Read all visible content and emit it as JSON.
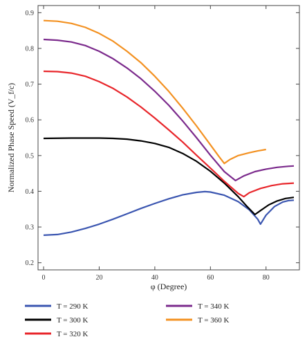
{
  "chart_data": {
    "type": "line",
    "xlabel": "φ (Degree)",
    "ylabel": "Normalized Phase Speed (V_f/c)",
    "xlim": [
      -2,
      92
    ],
    "ylim": [
      0.18,
      0.92
    ],
    "x_ticks": [
      0,
      20,
      40,
      60,
      80
    ],
    "y_ticks": [
      0.2,
      0.3,
      0.4,
      0.5,
      0.6,
      0.7,
      0.8,
      0.9
    ],
    "grid": false,
    "legend_position": "bottom",
    "series": [
      {
        "name": "T = 290 K",
        "color": "#3a55b0",
        "points": [
          [
            0,
            0.277
          ],
          [
            5,
            0.279
          ],
          [
            10,
            0.286
          ],
          [
            15,
            0.296
          ],
          [
            20,
            0.308
          ],
          [
            25,
            0.322
          ],
          [
            30,
            0.337
          ],
          [
            35,
            0.352
          ],
          [
            40,
            0.366
          ],
          [
            45,
            0.379
          ],
          [
            50,
            0.39
          ],
          [
            55,
            0.397
          ],
          [
            58,
            0.399
          ],
          [
            60,
            0.398
          ],
          [
            65,
            0.389
          ],
          [
            70,
            0.371
          ],
          [
            74,
            0.348
          ],
          [
            77,
            0.322
          ],
          [
            78,
            0.308
          ],
          [
            80,
            0.333
          ],
          [
            83,
            0.357
          ],
          [
            86,
            0.37
          ],
          [
            88,
            0.374
          ],
          [
            90,
            0.375
          ]
        ]
      },
      {
        "name": "T = 300 K",
        "color": "#000000",
        "points": [
          [
            0,
            0.548
          ],
          [
            10,
            0.549
          ],
          [
            20,
            0.549
          ],
          [
            25,
            0.548
          ],
          [
            30,
            0.546
          ],
          [
            35,
            0.541
          ],
          [
            40,
            0.534
          ],
          [
            45,
            0.523
          ],
          [
            50,
            0.506
          ],
          [
            55,
            0.484
          ],
          [
            60,
            0.456
          ],
          [
            65,
            0.423
          ],
          [
            70,
            0.385
          ],
          [
            73,
            0.359
          ],
          [
            76,
            0.335
          ],
          [
            78,
            0.346
          ],
          [
            81,
            0.362
          ],
          [
            84,
            0.373
          ],
          [
            87,
            0.38
          ],
          [
            90,
            0.383
          ]
        ]
      },
      {
        "name": "T = 320 K",
        "color": "#e8262b",
        "points": [
          [
            0,
            0.736
          ],
          [
            5,
            0.735
          ],
          [
            10,
            0.731
          ],
          [
            15,
            0.722
          ],
          [
            20,
            0.707
          ],
          [
            25,
            0.688
          ],
          [
            30,
            0.664
          ],
          [
            35,
            0.636
          ],
          [
            40,
            0.605
          ],
          [
            45,
            0.572
          ],
          [
            50,
            0.538
          ],
          [
            55,
            0.501
          ],
          [
            60,
            0.465
          ],
          [
            65,
            0.428
          ],
          [
            70,
            0.394
          ],
          [
            72,
            0.385
          ],
          [
            74,
            0.396
          ],
          [
            78,
            0.408
          ],
          [
            82,
            0.416
          ],
          [
            86,
            0.421
          ],
          [
            90,
            0.423
          ]
        ]
      },
      {
        "name": "T = 340 K",
        "color": "#7b2a8c",
        "points": [
          [
            0,
            0.825
          ],
          [
            5,
            0.823
          ],
          [
            10,
            0.818
          ],
          [
            15,
            0.808
          ],
          [
            20,
            0.792
          ],
          [
            25,
            0.771
          ],
          [
            30,
            0.745
          ],
          [
            35,
            0.715
          ],
          [
            40,
            0.68
          ],
          [
            45,
            0.641
          ],
          [
            50,
            0.597
          ],
          [
            55,
            0.55
          ],
          [
            60,
            0.501
          ],
          [
            65,
            0.455
          ],
          [
            69,
            0.43
          ],
          [
            72,
            0.443
          ],
          [
            76,
            0.455
          ],
          [
            80,
            0.462
          ],
          [
            84,
            0.467
          ],
          [
            88,
            0.47
          ],
          [
            90,
            0.471
          ]
        ]
      },
      {
        "name": "T = 360 K",
        "color": "#f39121",
        "points": [
          [
            0,
            0.878
          ],
          [
            5,
            0.876
          ],
          [
            10,
            0.87
          ],
          [
            15,
            0.859
          ],
          [
            20,
            0.842
          ],
          [
            25,
            0.82
          ],
          [
            30,
            0.792
          ],
          [
            35,
            0.76
          ],
          [
            40,
            0.722
          ],
          [
            45,
            0.68
          ],
          [
            50,
            0.633
          ],
          [
            55,
            0.583
          ],
          [
            60,
            0.53
          ],
          [
            63,
            0.498
          ],
          [
            65,
            0.478
          ],
          [
            67,
            0.489
          ],
          [
            70,
            0.5
          ],
          [
            74,
            0.508
          ],
          [
            77,
            0.513
          ],
          [
            80,
            0.517
          ]
        ]
      }
    ]
  }
}
